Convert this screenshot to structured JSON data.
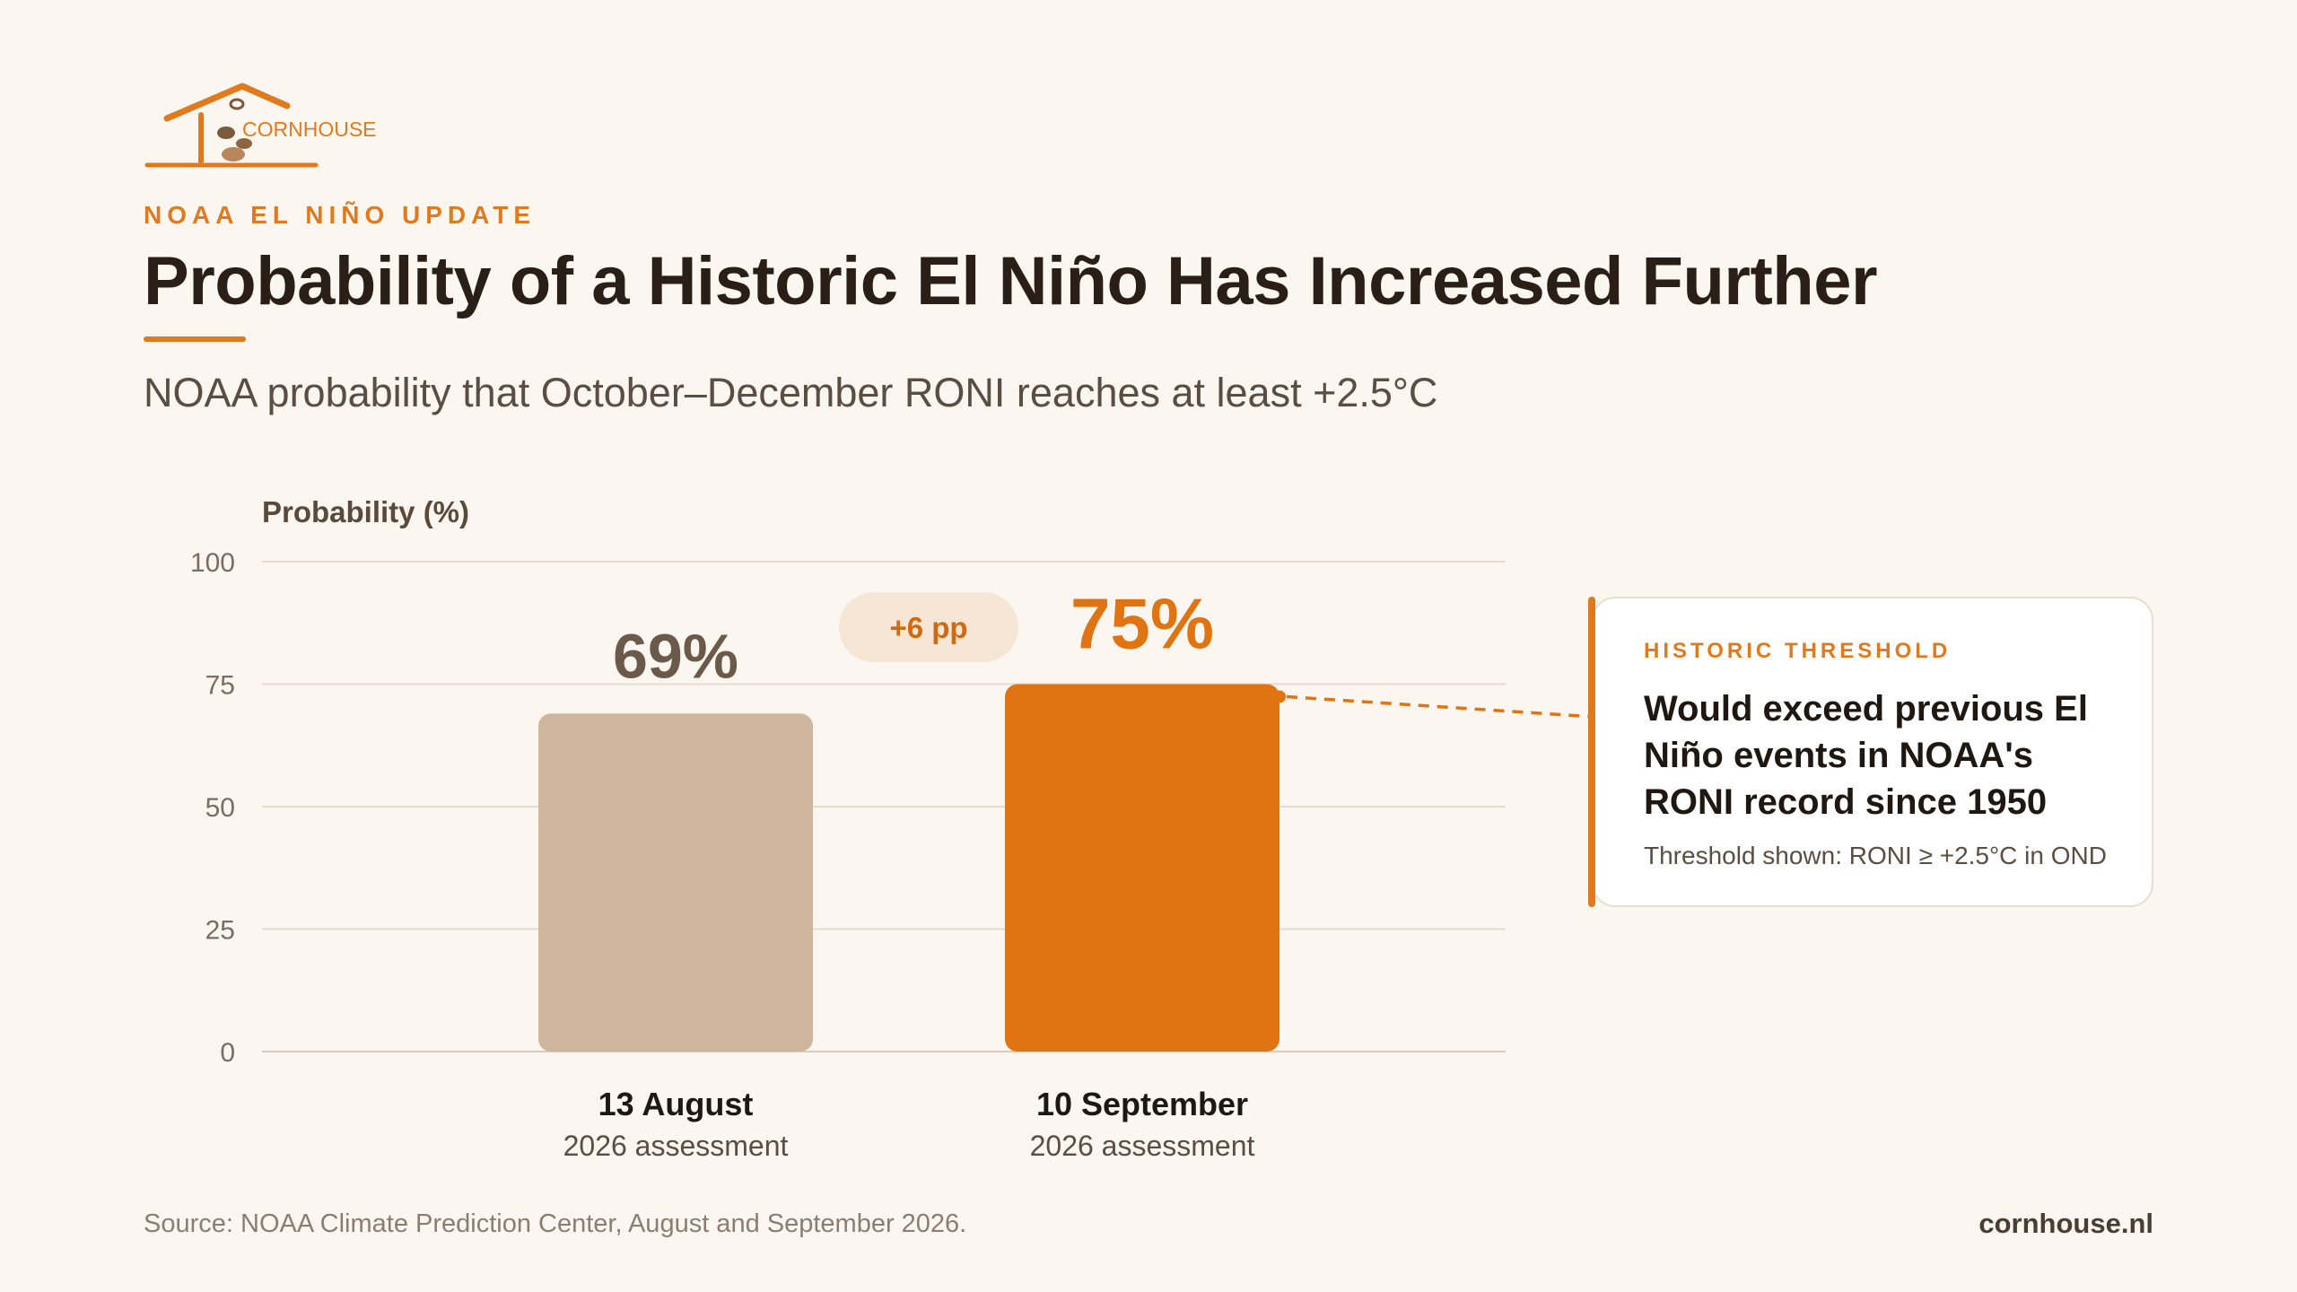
{
  "brand": {
    "logo_text": "CORNHOUSE",
    "logo_icon": "house-with-corn-icon",
    "site": "cornhouse.nl",
    "accent_color": "#E07A1F"
  },
  "header": {
    "kicker": "NOAA EL NIÑO UPDATE",
    "title": "Probability of a Historic El Niño Has Increased Further",
    "subtitle": "NOAA probability that October–December RONI reaches at least +2.5°C"
  },
  "chart_data": {
    "type": "bar",
    "ylabel": "Probability (%)",
    "xlabel": "",
    "ylim": [
      0,
      100
    ],
    "yticks": [
      0,
      25,
      50,
      75,
      100
    ],
    "grid": true,
    "categories": [
      "13 August",
      "10 September"
    ],
    "category_sublabels": [
      "2026 assessment",
      "2026 assessment"
    ],
    "values": [
      69,
      75
    ],
    "value_labels": [
      "69%",
      "75%"
    ],
    "bar_colors": [
      "#CDB59E",
      "#E07312"
    ],
    "value_label_colors": [
      "#6B5A4A",
      "#E07312"
    ],
    "change_annotation": "+6 pp"
  },
  "callout": {
    "kicker": "HISTORIC THRESHOLD",
    "headline": "Would exceed previous El Niño events in NOAA's RONI record since 1950",
    "note": "Threshold shown: RONI ≥ +2.5°C in OND"
  },
  "footer": {
    "source": "Source: NOAA Climate Prediction Center, August and September 2026."
  }
}
